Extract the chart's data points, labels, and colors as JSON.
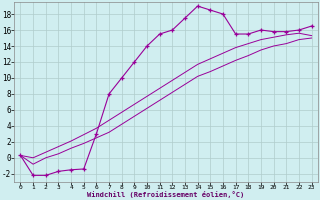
{
  "xlabel": "Windchill (Refroidissement éolien,°C)",
  "background_color": "#d0eef0",
  "grid_color": "#b0cccc",
  "line_color": "#990099",
  "xlim": [
    -0.5,
    23.5
  ],
  "ylim": [
    -3.0,
    19.5
  ],
  "yticks": [
    -2,
    0,
    2,
    4,
    6,
    8,
    10,
    12,
    14,
    16,
    18
  ],
  "xticks": [
    0,
    1,
    2,
    3,
    4,
    5,
    6,
    7,
    8,
    9,
    10,
    11,
    12,
    13,
    14,
    15,
    16,
    17,
    18,
    19,
    20,
    21,
    22,
    23
  ],
  "line1_x": [
    0,
    1,
    2,
    3,
    4,
    5,
    6,
    7,
    8,
    9,
    10,
    11,
    12,
    13,
    14,
    15,
    16,
    17,
    18,
    19,
    20,
    21,
    22,
    23
  ],
  "line1_y": [
    0.3,
    -2.2,
    -2.2,
    -1.7,
    -1.5,
    -1.4,
    3.0,
    8.0,
    10.0,
    12.0,
    14.0,
    15.5,
    16.0,
    17.5,
    19.0,
    18.5,
    18.0,
    15.5,
    15.5,
    16.0,
    15.8,
    15.8,
    16.0,
    16.5
  ],
  "line2_x": [
    0,
    1,
    2,
    3,
    4,
    5,
    6,
    7,
    8,
    9,
    10,
    11,
    12,
    13,
    14,
    15,
    16,
    17,
    18,
    19,
    20,
    21,
    22,
    23
  ],
  "line2_y": [
    0.3,
    -0.8,
    0.0,
    0.5,
    1.2,
    1.8,
    2.5,
    3.2,
    4.2,
    5.2,
    6.2,
    7.2,
    8.2,
    9.2,
    10.2,
    10.8,
    11.5,
    12.2,
    12.8,
    13.5,
    14.0,
    14.3,
    14.8,
    15.0
  ],
  "line3_x": [
    0,
    1,
    2,
    3,
    4,
    5,
    6,
    7,
    8,
    9,
    10,
    11,
    12,
    13,
    14,
    15,
    16,
    17,
    18,
    19,
    20,
    21,
    22,
    23
  ],
  "line3_y": [
    0.3,
    0.0,
    0.7,
    1.4,
    2.1,
    2.9,
    3.7,
    4.7,
    5.7,
    6.7,
    7.7,
    8.7,
    9.7,
    10.7,
    11.7,
    12.4,
    13.1,
    13.8,
    14.3,
    14.8,
    15.1,
    15.4,
    15.6,
    15.3
  ]
}
